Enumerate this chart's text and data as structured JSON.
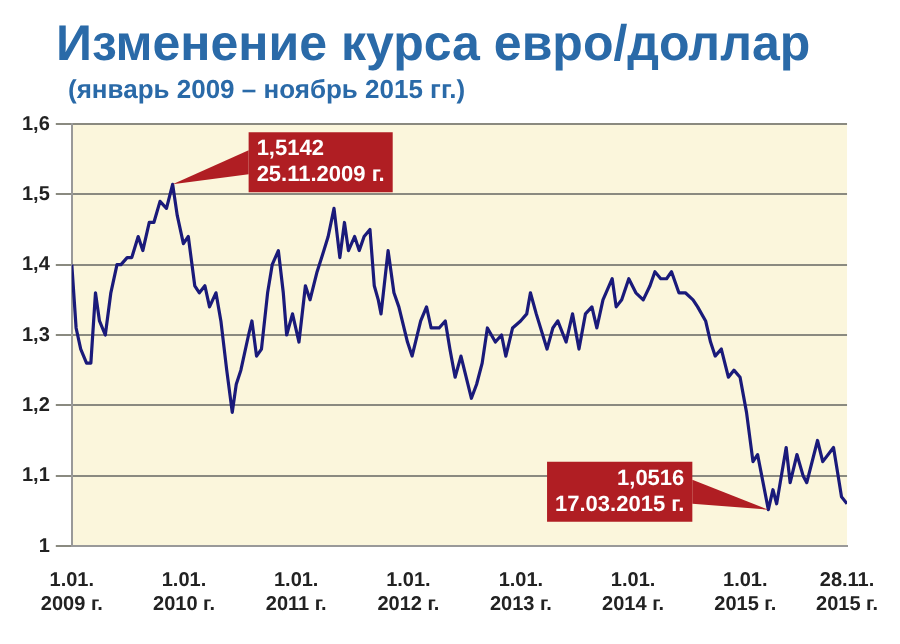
{
  "chart_data": {
    "type": "line",
    "title": "Изменение курса евро/доллар",
    "subtitle": "(январь 2009 – ноябрь 2015 гг.)",
    "x": [
      "2009-01-01",
      "2009-01-15",
      "2009-01-30",
      "2009-02-18",
      "2009-03-04",
      "2009-03-19",
      "2009-04-01",
      "2009-04-20",
      "2009-05-08",
      "2009-05-28",
      "2009-06-10",
      "2009-06-30",
      "2009-07-15",
      "2009-08-05",
      "2009-08-20",
      "2009-09-10",
      "2009-09-25",
      "2009-10-15",
      "2009-11-05",
      "2009-11-25",
      "2009-12-10",
      "2009-12-30",
      "2010-01-15",
      "2010-02-05",
      "2010-02-20",
      "2010-03-10",
      "2010-03-25",
      "2010-04-15",
      "2010-05-01",
      "2010-05-20",
      "2010-06-07",
      "2010-06-20",
      "2010-07-05",
      "2010-07-30",
      "2010-08-10",
      "2010-08-25",
      "2010-09-10",
      "2010-09-30",
      "2010-10-15",
      "2010-11-04",
      "2010-11-20",
      "2010-12-01",
      "2010-12-20",
      "2011-01-10",
      "2011-01-31",
      "2011-02-15",
      "2011-03-10",
      "2011-04-01",
      "2011-04-15",
      "2011-05-04",
      "2011-05-23",
      "2011-06-07",
      "2011-06-20",
      "2011-07-10",
      "2011-07-25",
      "2011-08-10",
      "2011-08-29",
      "2011-09-12",
      "2011-09-25",
      "2011-10-04",
      "2011-10-27",
      "2011-11-15",
      "2011-12-01",
      "2011-12-29",
      "2012-01-13",
      "2012-02-10",
      "2012-02-29",
      "2012-03-15",
      "2012-04-10",
      "2012-04-30",
      "2012-05-15",
      "2012-06-01",
      "2012-06-20",
      "2012-07-24",
      "2012-08-10",
      "2012-08-28",
      "2012-09-14",
      "2012-10-10",
      "2012-10-30",
      "2012-11-13",
      "2012-12-05",
      "2012-12-31",
      "2013-01-20",
      "2013-02-01",
      "2013-02-20",
      "2013-03-27",
      "2013-04-15",
      "2013-05-01",
      "2013-05-28",
      "2013-06-18",
      "2013-07-09",
      "2013-07-30",
      "2013-08-20",
      "2013-09-05",
      "2013-09-25",
      "2013-10-25",
      "2013-11-07",
      "2013-11-25",
      "2013-12-18",
      "2014-01-10",
      "2014-02-03",
      "2014-02-25",
      "2014-03-13",
      "2014-04-01",
      "2014-04-20",
      "2014-05-06",
      "2014-05-30",
      "2014-06-20",
      "2014-07-15",
      "2014-07-30",
      "2014-08-25",
      "2014-09-10",
      "2014-09-25",
      "2014-10-15",
      "2014-11-07",
      "2014-11-25",
      "2014-12-15",
      "2015-01-05",
      "2015-01-26",
      "2015-02-10",
      "2015-03-17",
      "2015-04-01",
      "2015-04-13",
      "2015-05-14",
      "2015-05-27",
      "2015-06-18",
      "2015-07-08",
      "2015-07-20",
      "2015-08-24",
      "2015-09-10",
      "2015-10-15",
      "2015-10-30",
      "2015-11-10",
      "2015-11-28"
    ],
    "series": [
      {
        "color": "#1a1a7a",
        "values": [
          1.4,
          1.31,
          1.28,
          1.26,
          1.26,
          1.36,
          1.32,
          1.3,
          1.36,
          1.4,
          1.4,
          1.41,
          1.41,
          1.44,
          1.42,
          1.46,
          1.46,
          1.49,
          1.48,
          1.5142,
          1.47,
          1.43,
          1.44,
          1.37,
          1.36,
          1.37,
          1.34,
          1.36,
          1.32,
          1.25,
          1.19,
          1.23,
          1.25,
          1.3,
          1.32,
          1.27,
          1.28,
          1.36,
          1.4,
          1.42,
          1.36,
          1.3,
          1.33,
          1.29,
          1.37,
          1.35,
          1.39,
          1.42,
          1.44,
          1.48,
          1.41,
          1.46,
          1.42,
          1.44,
          1.42,
          1.44,
          1.45,
          1.37,
          1.35,
          1.33,
          1.42,
          1.36,
          1.34,
          1.29,
          1.27,
          1.32,
          1.34,
          1.31,
          1.31,
          1.32,
          1.28,
          1.24,
          1.27,
          1.21,
          1.23,
          1.26,
          1.31,
          1.29,
          1.3,
          1.27,
          1.31,
          1.32,
          1.33,
          1.36,
          1.33,
          1.28,
          1.31,
          1.32,
          1.29,
          1.33,
          1.28,
          1.33,
          1.34,
          1.31,
          1.35,
          1.38,
          1.34,
          1.35,
          1.38,
          1.36,
          1.35,
          1.37,
          1.39,
          1.38,
          1.38,
          1.39,
          1.36,
          1.36,
          1.35,
          1.34,
          1.32,
          1.29,
          1.27,
          1.28,
          1.24,
          1.25,
          1.24,
          1.19,
          1.12,
          1.13,
          1.0516,
          1.08,
          1.06,
          1.14,
          1.09,
          1.13,
          1.1,
          1.09,
          1.15,
          1.12,
          1.14,
          1.1,
          1.07,
          1.06
        ]
      }
    ],
    "xlim": [
      "2009-01-01",
      "2015-11-28"
    ],
    "xticks": [
      {
        "value": "2009-01-01",
        "label": "1.01. 2009 г."
      },
      {
        "value": "2010-01-01",
        "label": "1.01. 2010 г."
      },
      {
        "value": "2011-01-01",
        "label": "1.01. 2011 г."
      },
      {
        "value": "2012-01-01",
        "label": "1.01. 2012 г."
      },
      {
        "value": "2013-01-01",
        "label": "1.01. 2013 г."
      },
      {
        "value": "2014-01-01",
        "label": "1.01. 2014 г."
      },
      {
        "value": "2015-01-01",
        "label": "1.01. 2015 г."
      },
      {
        "value": "2015-11-28",
        "label": "28.11. 2015 г."
      }
    ],
    "ylim": [
      1,
      1.6
    ],
    "yticks": [
      {
        "value": 1,
        "label": "1"
      },
      {
        "value": 1.1,
        "label": "1,1"
      },
      {
        "value": 1.2,
        "label": "1,2"
      },
      {
        "value": 1.3,
        "label": "1,3"
      },
      {
        "value": 1.4,
        "label": "1,4"
      },
      {
        "value": 1.5,
        "label": "1,5"
      },
      {
        "value": 1.6,
        "label": "1,6"
      }
    ],
    "grid": "y",
    "legend": false,
    "marker": "none",
    "line_style": "solid",
    "annotations": [
      {
        "text": "1,5142\n25.11.2009 г.",
        "x": "2009-11-25",
        "y": 1.5142
      },
      {
        "text": "1,0516\n17.03.2015 г.",
        "x": "2015-03-17",
        "y": 1.0516
      }
    ]
  }
}
